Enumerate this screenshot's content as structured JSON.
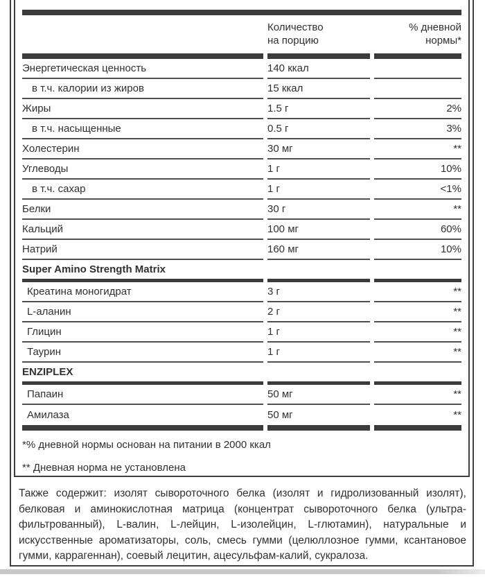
{
  "table": {
    "header": {
      "amount": "Количество\nна порцию",
      "daily_value": "% дневной\nнормы*"
    },
    "rows": [
      {
        "label": "Энергетическая ценность",
        "amount": "140 ккал",
        "dv": "",
        "indent": "main"
      },
      {
        "label": "в т.ч. калории из жиров",
        "amount": "15 ккал",
        "dv": "",
        "indent": "sub"
      },
      {
        "label": "Жиры",
        "amount": "1.5 г",
        "dv": "2%",
        "indent": "main"
      },
      {
        "label": "в т.ч. насыщенные",
        "amount": "0.5 г",
        "dv": "3%",
        "indent": "sub"
      },
      {
        "label": "Холестерин",
        "amount": "30 мг",
        "dv": "**",
        "indent": "main"
      },
      {
        "label": "Углеводы",
        "amount": "1 г",
        "dv": "10%",
        "indent": "main"
      },
      {
        "label": "в т.ч. сахар",
        "amount": "1 г",
        "dv": "<1%",
        "indent": "sub"
      },
      {
        "label": "Белки",
        "amount": "30 г",
        "dv": "**",
        "indent": "main"
      },
      {
        "label": "Кальций",
        "amount": "100 мг",
        "dv": "60%",
        "indent": "main"
      },
      {
        "label": "Натрий",
        "amount": "160 мг",
        "dv": "10%",
        "indent": "main"
      },
      {
        "label": "Super Amino Strength Matrix",
        "type": "section"
      },
      {
        "label": "Креатина моногидрат",
        "amount": "3 г",
        "dv": "**",
        "indent": "sub2"
      },
      {
        "label": "L-аланин",
        "amount": "2 г",
        "dv": "**",
        "indent": "sub2"
      },
      {
        "label": "Глицин",
        "amount": "1 г",
        "dv": "**",
        "indent": "sub2"
      },
      {
        "label": "Таурин",
        "amount": "1 г",
        "dv": "**",
        "indent": "sub2"
      },
      {
        "label": "ENZIPLEX",
        "type": "section"
      },
      {
        "label": "Папаин",
        "amount": "50 мг",
        "dv": "**",
        "indent": "sub2"
      },
      {
        "label": "Амилаза",
        "amount": "50 мг",
        "dv": "**",
        "indent": "sub2",
        "last": true
      }
    ],
    "footnotes": [
      "*% дневной нормы основан на питании в 2000 ккал",
      "** Дневная норма не установлена"
    ]
  },
  "ingredients_text": "Также содержит: изолят сывороточного белка (изолят и гидролизованный изолят), белковая и аминокислотная матрица (концентрат сывороточного белка (ультра-фильтрованный), L-валин, L-лейцин, L-изолейцин, L-глютамин), натуральные и искусственные ароматизаторы, соль, смесь гумми (целюллозное гумми, ксантановое гумми, каррагеннан), соевый лецитин, ацесульфам-калий, сукралоза.",
  "colors": {
    "bar": "#3b3b3b",
    "separator": "#4f4f4f",
    "border": "#3e3e3e",
    "text": "#303030",
    "bottom_strip": "#c7c7c7"
  }
}
